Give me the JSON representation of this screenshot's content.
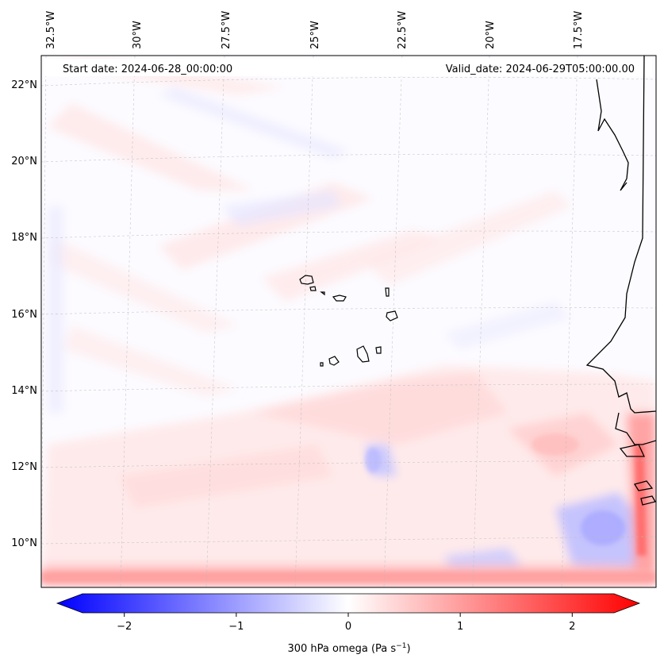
{
  "map": {
    "start_date": "Start date: 2024-06-28_00:00:00",
    "valid_date": "Valid_date: 2024-06-29T05:00:00.00",
    "lon_labels": [
      "32.5°W",
      "30°W",
      "27.5°W",
      "25°W",
      "22.5°W",
      "20°W",
      "17.5°W"
    ],
    "lat_labels": [
      "22°N",
      "20°N",
      "18°N",
      "16°N",
      "14°N",
      "12°N",
      "10°N"
    ],
    "field": "300 hPa omega"
  },
  "colorbar": {
    "ticks": [
      "−2",
      "−1",
      "0",
      "1",
      "2"
    ],
    "tick_values": [
      -2,
      -1,
      0,
      1,
      2
    ],
    "range": [
      -2.6,
      2.6
    ],
    "label_prefix": "300 hPa omega (Pa s",
    "label_exp": "−1",
    "label_suffix": ")",
    "colors": {
      "neg": "#0000ff",
      "mid": "#ffffff",
      "pos": "#ff0000"
    }
  },
  "colors": {
    "coast": "#000000",
    "grid": "#bbbbbb"
  }
}
